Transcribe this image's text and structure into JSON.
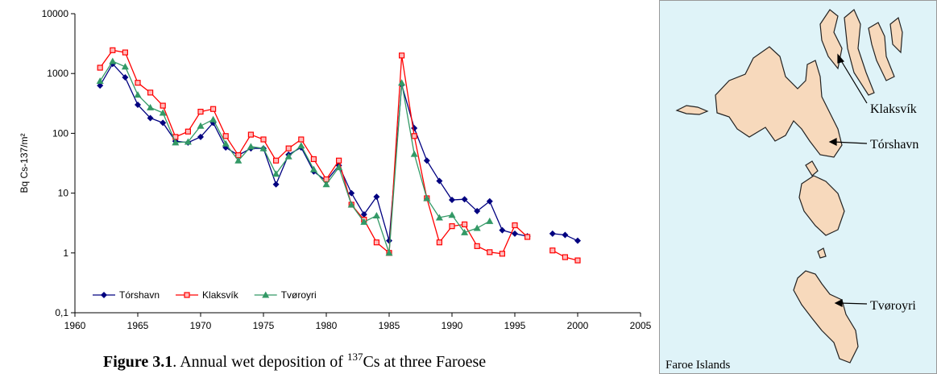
{
  "chart_data": {
    "type": "line",
    "y_label": "Bq Cs-137/m²",
    "x": [
      1962,
      1963,
      1964,
      1965,
      1966,
      1967,
      1968,
      1969,
      1970,
      1971,
      1972,
      1973,
      1974,
      1975,
      1976,
      1977,
      1978,
      1979,
      1980,
      1981,
      1982,
      1983,
      1984,
      1985,
      1986,
      1987,
      1988,
      1989,
      1990,
      1991,
      1992,
      1993,
      1994,
      1995,
      1996,
      1997,
      1998,
      1999,
      2000
    ],
    "series": [
      {
        "name": "Tórshavn",
        "color": "#000080",
        "marker": "diamond",
        "values": [
          630,
          1450,
          860,
          300,
          180,
          150,
          74,
          70,
          87,
          150,
          58,
          43,
          56,
          56,
          14,
          44,
          58,
          23,
          16,
          29,
          10,
          4.4,
          8.7,
          1.6,
          650,
          122,
          35,
          16,
          7.7,
          7.9,
          5.0,
          7.3,
          2.4,
          2.1,
          1.9,
          null,
          2.1,
          2.0,
          1.6
        ]
      },
      {
        "name": "Klaksvík",
        "color": "#ff0000",
        "marker": "square",
        "values": [
          1250,
          2450,
          2250,
          700,
          480,
          290,
          87,
          107,
          230,
          255,
          90,
          43,
          95,
          79,
          35,
          56,
          79,
          37,
          17,
          35,
          6.4,
          3.6,
          1.5,
          1.0,
          2000,
          90,
          8.2,
          1.5,
          2.8,
          3.0,
          1.3,
          1.03,
          0.97,
          2.9,
          1.85,
          null,
          1.1,
          0.85,
          0.75
        ]
      },
      {
        "name": "Tvøroyri",
        "color": "#339966",
        "marker": "triangle",
        "values": [
          750,
          1600,
          1300,
          440,
          270,
          220,
          70,
          72,
          133,
          170,
          67,
          35,
          60,
          56,
          21,
          41,
          62,
          25,
          14,
          27,
          6.4,
          3.3,
          4.2,
          1.0,
          700,
          45,
          8.2,
          3.9,
          4.3,
          2.2,
          2.6,
          3.4,
          null,
          null,
          null,
          null,
          null,
          null,
          null
        ]
      }
    ],
    "xlim": [
      1960,
      2005
    ],
    "xticks": [
      1960,
      1965,
      1970,
      1975,
      1980,
      1985,
      1990,
      1995,
      2000,
      2005
    ],
    "ylim": [
      0.1,
      10000
    ],
    "yscale": "log",
    "yticks": [
      {
        "value": 0.1,
        "label": "0,1"
      },
      1,
      10,
      100,
      1000,
      10000
    ],
    "grid": false,
    "legend": "lower left"
  },
  "caption": {
    "label": "Figure 3.1",
    "text": ". Annual wet deposition of ",
    "superscript": "137",
    "text_after": "Cs at three Faroese"
  },
  "map": {
    "title": "Faroe Islands",
    "labels": [
      "Klaksvík",
      "Tórshavn",
      "Tvøroyri"
    ]
  }
}
